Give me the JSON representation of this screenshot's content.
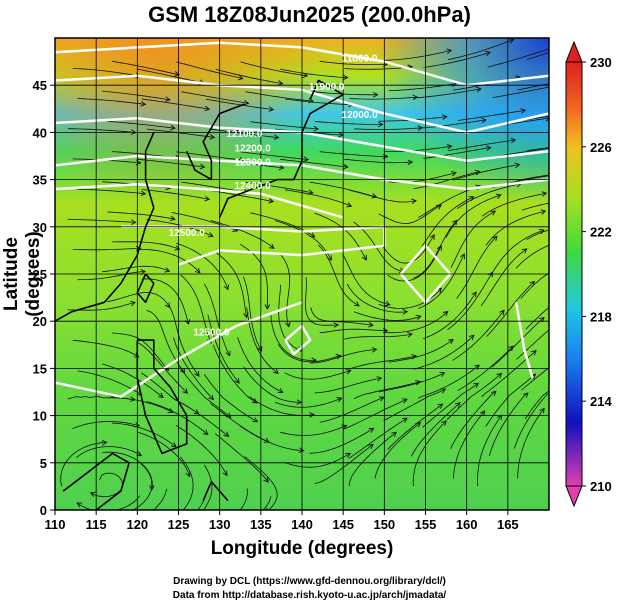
{
  "title": "GSM 18Z08Jun2025 (200.0hPa)",
  "credits": {
    "line1": "Drawing by DCL (https://www.gfd-dennou.org/library/dcl/)",
    "line2": "Data from http://database.rish.kyoto-u.ac.jp/arch/jmadata/"
  },
  "chart_data": {
    "type": "heatmap",
    "description_fields": "geopotential height shading with contour lines and wind streamlines",
    "xlabel": "Longitude (degrees)",
    "ylabel": "Latitude  (degrees)",
    "xlim": [
      110,
      170
    ],
    "ylim": [
      0,
      50
    ],
    "x_ticks": [
      110,
      115,
      120,
      125,
      130,
      135,
      140,
      145,
      150,
      155,
      160,
      165
    ],
    "y_ticks": [
      0,
      5,
      10,
      15,
      20,
      25,
      30,
      35,
      40,
      45
    ],
    "grid": true,
    "colorbar": {
      "range": [
        210,
        230
      ],
      "ticks": [
        210,
        214,
        218,
        222,
        226,
        230
      ],
      "colors": [
        "#e040b0",
        "#1010c0",
        "#1a7ff0",
        "#20c8e0",
        "#40d840",
        "#a8e020",
        "#f0c020",
        "#f06020",
        "#e02020"
      ]
    },
    "contour_labels": [
      {
        "text": "11800.0",
        "lon": 147,
        "lat": 47.5
      },
      {
        "text": "11900.0",
        "lon": 143,
        "lat": 44.5
      },
      {
        "text": "12000.0",
        "lon": 147,
        "lat": 41.5
      },
      {
        "text": "12100.0",
        "lon": 133,
        "lat": 39.5
      },
      {
        "text": "12200.0",
        "lon": 134,
        "lat": 38
      },
      {
        "text": "12300.0",
        "lon": 134,
        "lat": 36.5
      },
      {
        "text": "12400.0",
        "lon": 134,
        "lat": 34
      },
      {
        "text": "12500.0",
        "lon": 126,
        "lat": 29
      },
      {
        "text": "12500.0",
        "lon": 129,
        "lat": 18.5
      }
    ]
  }
}
